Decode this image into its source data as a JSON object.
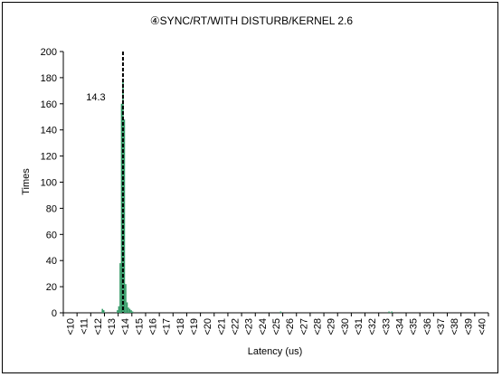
{
  "chart_data": {
    "type": "bar",
    "title": "④SYNC/RT/WITH DISTURB/KERNEL 2.6",
    "xlabel": "Latency (us)",
    "ylabel": "Times",
    "ylim": [
      0,
      200
    ],
    "yticks": [
      0,
      20,
      40,
      60,
      80,
      100,
      120,
      140,
      160,
      180,
      200
    ],
    "categories": [
      "<10",
      "<11",
      "<12",
      "<13",
      "<14",
      "<15",
      "<16",
      "<17",
      "<18",
      "<19",
      "<20",
      "<21",
      "<22",
      "<23",
      "<24",
      "<25",
      "<26",
      "<27",
      "<28",
      "<29",
      "<30",
      "<31",
      "<32",
      "<33",
      "<34",
      "<35",
      "<36",
      "<37",
      "<38",
      "<39",
      "<40"
    ],
    "bin_width": 0.1,
    "bar_color": "#339966",
    "bars": [
      {
        "x": 12.8,
        "y": 3
      },
      {
        "x": 12.9,
        "y": 2
      },
      {
        "x": 13.9,
        "y": 2
      },
      {
        "x": 14.0,
        "y": 5
      },
      {
        "x": 14.1,
        "y": 38
      },
      {
        "x": 14.2,
        "y": 160
      },
      {
        "x": 14.3,
        "y": 178
      },
      {
        "x": 14.4,
        "y": 148
      },
      {
        "x": 14.5,
        "y": 22
      },
      {
        "x": 14.6,
        "y": 8
      },
      {
        "x": 14.7,
        "y": 4
      },
      {
        "x": 14.8,
        "y": 3
      },
      {
        "x": 14.9,
        "y": 2
      },
      {
        "x": 15.0,
        "y": 1
      },
      {
        "x": 25.8,
        "y": 1
      },
      {
        "x": 33.7,
        "y": 1
      },
      {
        "x": 33.9,
        "y": 1
      }
    ],
    "marker": {
      "x": 14.3,
      "label": "14.3",
      "style": "dashed"
    },
    "grid": false,
    "legend": false
  }
}
